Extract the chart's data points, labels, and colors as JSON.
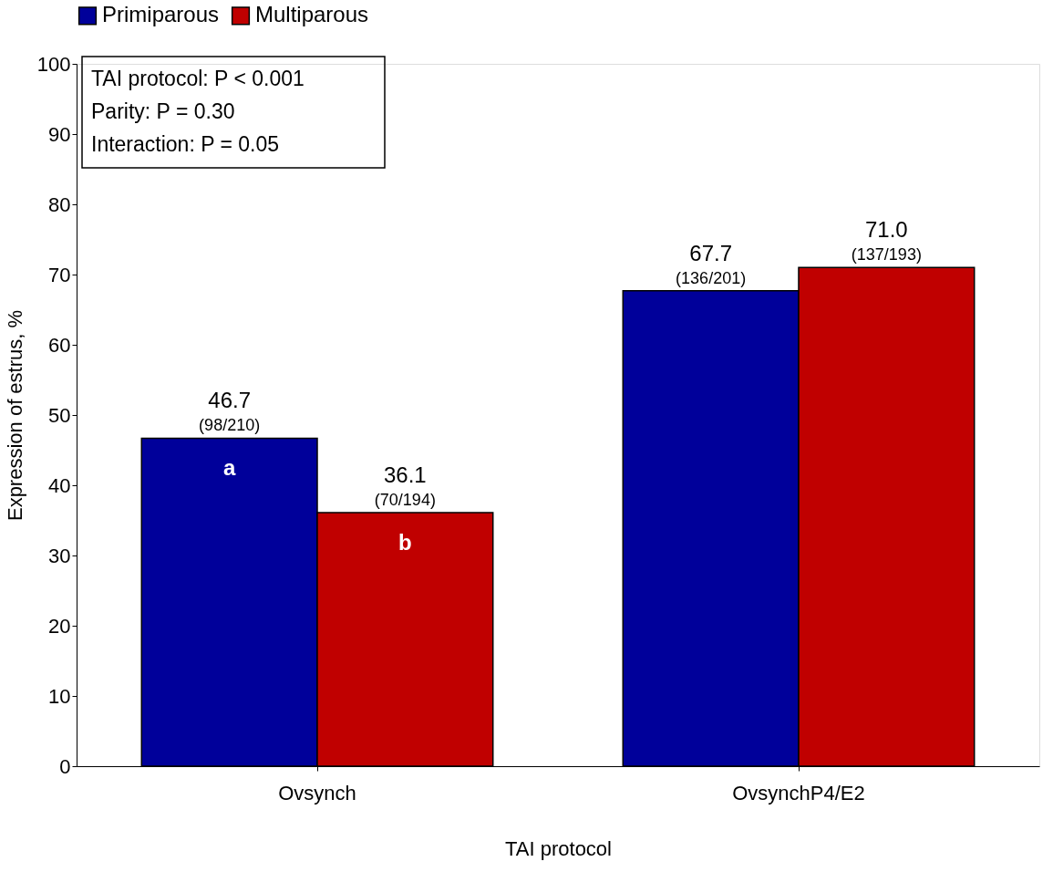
{
  "chart_data": {
    "type": "bar",
    "xlabel": "TAI protocol",
    "ylabel": "Expression of estrus, %",
    "categories": [
      "Ovsynch",
      "OvsynchP4/E2"
    ],
    "series": [
      {
        "name": "Primiparous",
        "color": "#00009a",
        "values": [
          46.7,
          67.7
        ],
        "value_labels": [
          "46.7\n(98/210)\na",
          "67.7\n(136/201)"
        ]
      },
      {
        "name": "Multiparous",
        "color": "#c00000",
        "values": [
          36.1,
          71.0
        ],
        "value_labels": [
          "36.1\n(70/194)\nb",
          "71.0\n(137/193)"
        ]
      }
    ],
    "ylim": [
      0,
      100
    ],
    "yticks": [
      0,
      10,
      20,
      30,
      40,
      50,
      60,
      70,
      80,
      90,
      100
    ],
    "grid": false,
    "legend": "top",
    "annotations": [
      "TAI protocol: P < 0.001",
      "Parity: P = 0.30",
      "Interaction: P = 0.05"
    ]
  }
}
